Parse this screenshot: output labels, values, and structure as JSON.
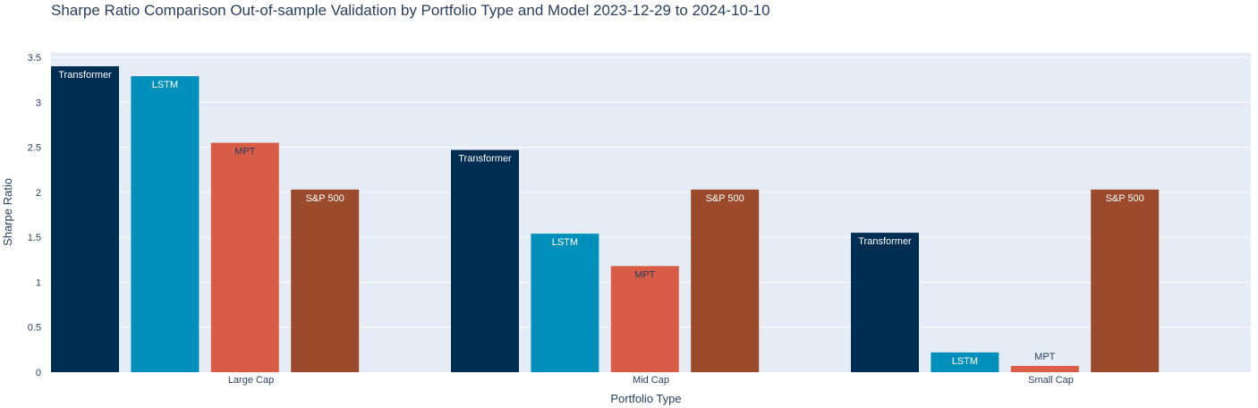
{
  "chart_data": {
    "type": "bar",
    "title": "Sharpe Ratio Comparison Out-of-sample Validation by Portfolio Type and Model 2023-12-29 to 2024-10-10",
    "xlabel": "Portfolio Type",
    "ylabel": "Sharpe Ratio",
    "categories": [
      "Large Cap",
      "Mid Cap",
      "Small Cap"
    ],
    "ylim": [
      0,
      3.55
    ],
    "yticks": [
      0,
      0.5,
      1,
      1.5,
      2,
      2.5,
      3,
      3.5
    ],
    "ytick_labels": [
      "0",
      "0.5",
      "1",
      "1.5",
      "2",
      "2.5",
      "3",
      "3.5"
    ],
    "grid": true,
    "series": [
      {
        "name": "Transformer",
        "values": [
          3.4,
          2.47,
          1.55
        ],
        "color": "#002e52",
        "label_color": "#ffffff"
      },
      {
        "name": "LSTM",
        "values": [
          3.29,
          1.54,
          0.22
        ],
        "color": "#0090bb",
        "label_color": "#ffffff"
      },
      {
        "name": "MPT",
        "values": [
          2.55,
          1.18,
          0.07
        ],
        "color": "#d95c47",
        "label_color": "#2a3f5f"
      },
      {
        "name": "S&P 500",
        "values": [
          2.03,
          2.03,
          2.03
        ],
        "color": "#9b4a2c",
        "label_color": "#ffffff"
      }
    ],
    "colors": {
      "plot_bg": "#e5ecf6",
      "grid": "#ffffff",
      "text": "#2a3f5f"
    }
  }
}
